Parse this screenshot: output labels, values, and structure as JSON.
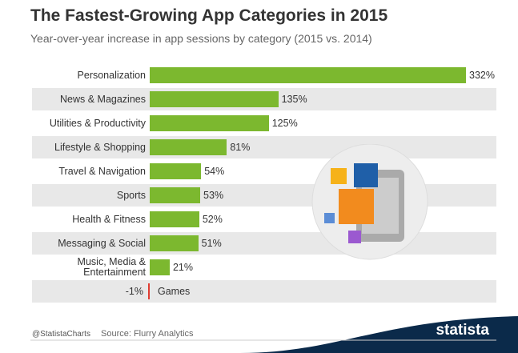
{
  "chart_data": {
    "type": "bar",
    "orientation": "horizontal",
    "title": "The Fastest-Growing App Categories in 2015",
    "subtitle": "Year-over-year increase in app sessions by category (2015 vs. 2014)",
    "categories": [
      "Personalization",
      "News & Magazines",
      "Utilities & Productivity",
      "Lifestyle & Shopping",
      "Travel & Navigation",
      "Sports",
      "Health & Fitness",
      "Messaging & Social",
      "Music, Media & Entertainment",
      "Games"
    ],
    "values": [
      332,
      135,
      125,
      81,
      54,
      53,
      52,
      51,
      21,
      -1
    ],
    "value_labels": [
      "332%",
      "135%",
      "125%",
      "81%",
      "54%",
      "53%",
      "52%",
      "51%",
      "21%",
      "-1%"
    ],
    "color": "#7cb82f",
    "negative_color": "#e03c31",
    "stripe_color": "#e8e8e8"
  },
  "footer": {
    "credit": "@StatistaCharts",
    "source": "Source: Flurry Analytics",
    "brand": "statista"
  }
}
